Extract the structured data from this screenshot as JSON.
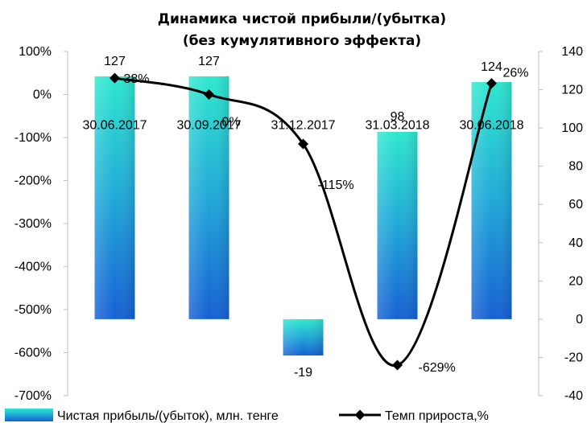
{
  "chart_data": {
    "type": "bar",
    "title": "Динамика чистой прибыли/(убытка)",
    "subtitle": "(без кумулятивного эффекта)",
    "categories": [
      "30.06.2017",
      "30.09.2017",
      "31.12.2017",
      "31.03.2018",
      "30.06.2018"
    ],
    "series": [
      {
        "name": "Чистая прибыль/(убыток), млн. тенге",
        "type": "bar",
        "axis": "right",
        "values": [
          127,
          127,
          -19,
          98,
          124
        ],
        "value_labels": [
          "127",
          "127",
          "-19",
          "98",
          "124"
        ]
      },
      {
        "name": "Темп прироста,%",
        "type": "line",
        "axis": "left",
        "values": [
          38,
          0,
          -115,
          -629,
          26
        ],
        "value_labels": [
          "38%",
          "0%",
          "-115%",
          "-629%",
          "26%"
        ]
      }
    ],
    "y_left": {
      "ylim": [
        -700,
        100
      ],
      "ticks": [
        100,
        0,
        -100,
        -200,
        -300,
        -400,
        -500,
        -600,
        -700
      ],
      "tick_labels": [
        "100%",
        "0%",
        "-100%",
        "-200%",
        "-300%",
        "-400%",
        "-500%",
        "-600%",
        "-700%"
      ]
    },
    "y_right": {
      "ylim": [
        -40,
        140
      ],
      "ticks": [
        140,
        120,
        100,
        80,
        60,
        40,
        20,
        0,
        -20,
        -40
      ],
      "tick_labels": [
        "140",
        "120",
        "100",
        "80",
        "60",
        "40",
        "20",
        "0",
        "-20",
        "-40"
      ]
    },
    "grid": false,
    "legend": "bottom",
    "colors": {
      "bar_top": "#2ee8cf",
      "bar_bottom": "#1567d6",
      "line": "#000000"
    }
  }
}
